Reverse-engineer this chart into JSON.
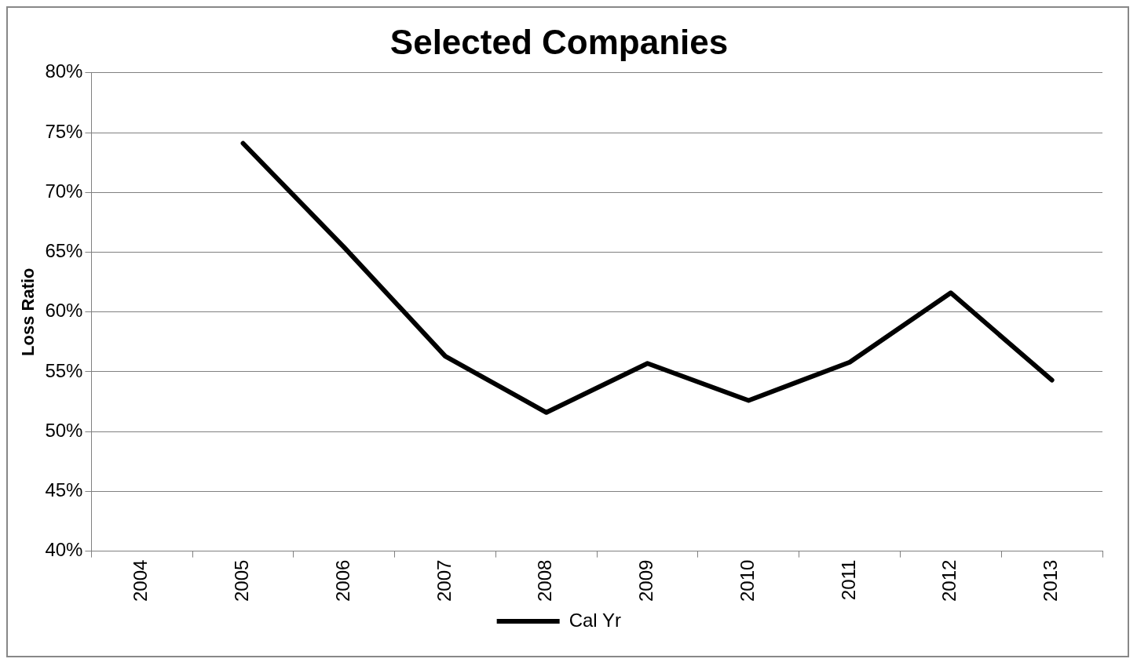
{
  "chart_data": {
    "type": "line",
    "title": "Selected Companies",
    "ylabel": "Loss Ratio",
    "categories": [
      "2004",
      "2005",
      "2006",
      "2007",
      "2008",
      "2009",
      "2010",
      "2011",
      "2012",
      "2013"
    ],
    "series": [
      {
        "name": "Cal Yr",
        "color": "#000000",
        "values": [
          null,
          74.1,
          65.4,
          56.3,
          51.6,
          55.7,
          52.6,
          55.8,
          61.6,
          54.3
        ]
      }
    ],
    "ylim": [
      40,
      80
    ],
    "yticks": [
      {
        "value": 40,
        "label": "40%"
      },
      {
        "value": 45,
        "label": "45%"
      },
      {
        "value": 50,
        "label": "50%"
      },
      {
        "value": 55,
        "label": "55%"
      },
      {
        "value": 60,
        "label": "60%"
      },
      {
        "value": 65,
        "label": "65%"
      },
      {
        "value": 70,
        "label": "70%"
      },
      {
        "value": 75,
        "label": "75%"
      },
      {
        "value": 80,
        "label": "80%"
      }
    ],
    "grid": "y",
    "legend": "bottom",
    "marker": "none",
    "line_style": "solid"
  }
}
